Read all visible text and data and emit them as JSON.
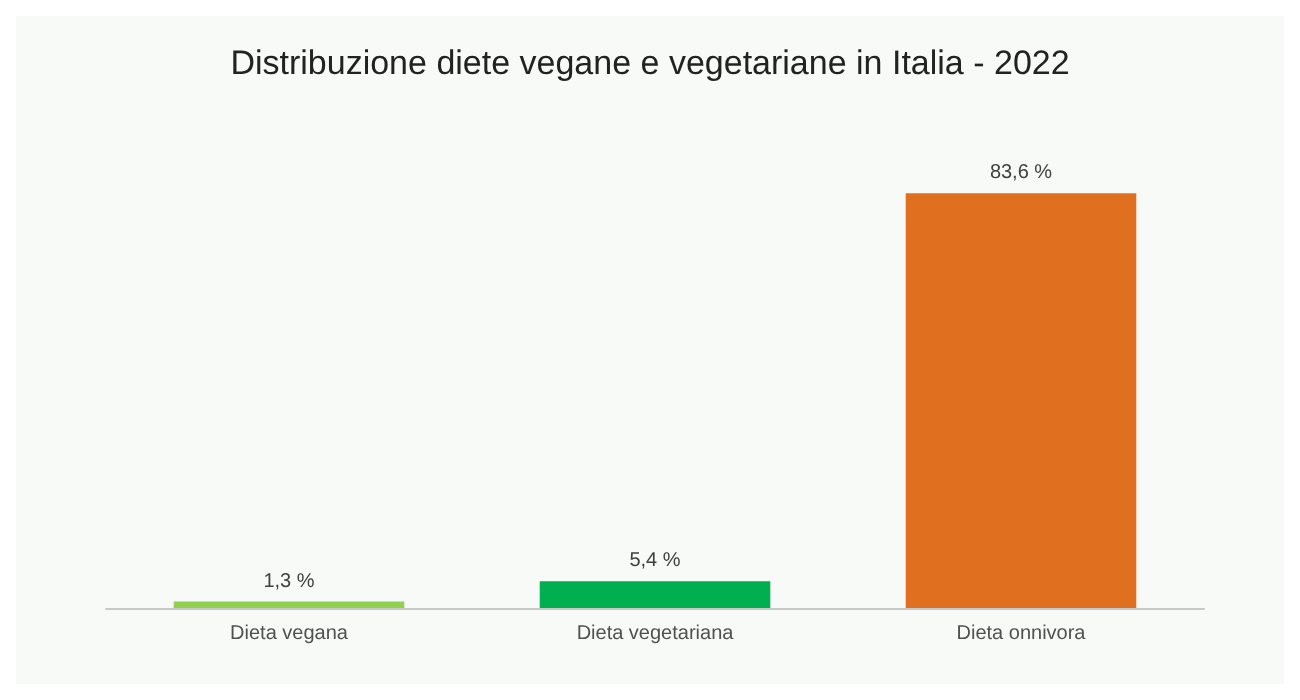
{
  "chart_data": {
    "type": "bar",
    "title": "Distribuzione diete vegane e vegetariane in Italia - 2022",
    "categories": [
      "Dieta vegana",
      "Dieta vegetariana",
      "Dieta onnivora"
    ],
    "values": [
      1.3,
      5.4,
      83.6
    ],
    "colors": [
      "#92d050",
      "#00b050",
      "#e07020"
    ],
    "value_labels": [
      "1,3 %",
      "5,4 %",
      "83,6 %"
    ]
  }
}
